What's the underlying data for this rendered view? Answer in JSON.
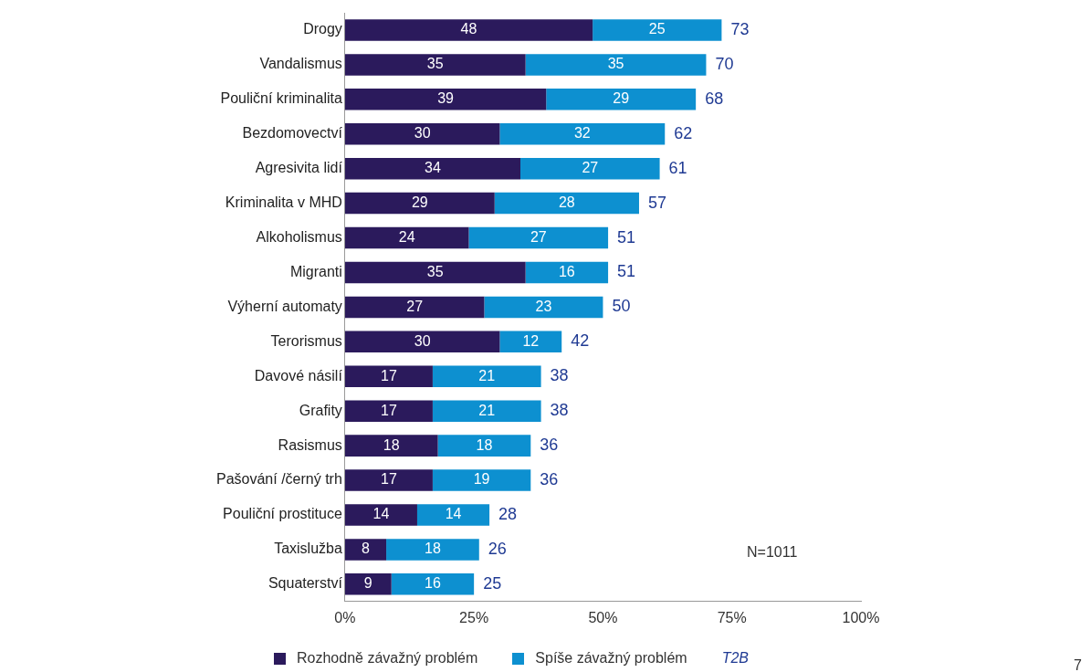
{
  "chart_data": {
    "type": "bar",
    "orientation": "horizontal",
    "stacked": true,
    "data_labels": true,
    "legend": "bottom",
    "grid": false,
    "categories": [
      "Drogy",
      "Vandalismus",
      "Pouliční kriminalita",
      "Bezdomovectví",
      "Agresivita lidí",
      "Kriminalita v MHD",
      "Alkoholismus",
      "Migranti",
      "Výherní automaty",
      "Terorismus",
      "Davové násilí",
      "Grafity",
      "Rasismus",
      "Pašování /černý trh",
      "Pouliční prostituce",
      "Taxislužba",
      "Squaterství"
    ],
    "series": [
      {
        "name": "Rozhodně závažný problém",
        "color": "#2b1a5c",
        "values": [
          48,
          35,
          39,
          30,
          34,
          29,
          24,
          35,
          27,
          30,
          17,
          17,
          18,
          17,
          14,
          8,
          9
        ]
      },
      {
        "name": "Spíše závažný problém",
        "color": "#0d90d0",
        "values": [
          25,
          35,
          29,
          32,
          27,
          28,
          27,
          16,
          23,
          12,
          21,
          21,
          18,
          19,
          14,
          18,
          16
        ]
      }
    ],
    "totals": [
      "73",
      "70",
      "68",
      "62",
      "61",
      "57",
      "51",
      "51",
      "50",
      "42",
      "38",
      "38",
      "36",
      "36",
      "28",
      "26",
      "25"
    ],
    "legend_title": "T2B",
    "xlim": [
      0,
      100
    ],
    "xticks": [
      {
        "value": 0,
        "label": "0%"
      },
      {
        "value": 25,
        "label": "25%"
      },
      {
        "value": 50,
        "label": "50%"
      },
      {
        "value": 75,
        "label": "75%"
      },
      {
        "value": 100,
        "label": "100%"
      }
    ],
    "annotations": [
      "N=1011",
      "7"
    ]
  }
}
